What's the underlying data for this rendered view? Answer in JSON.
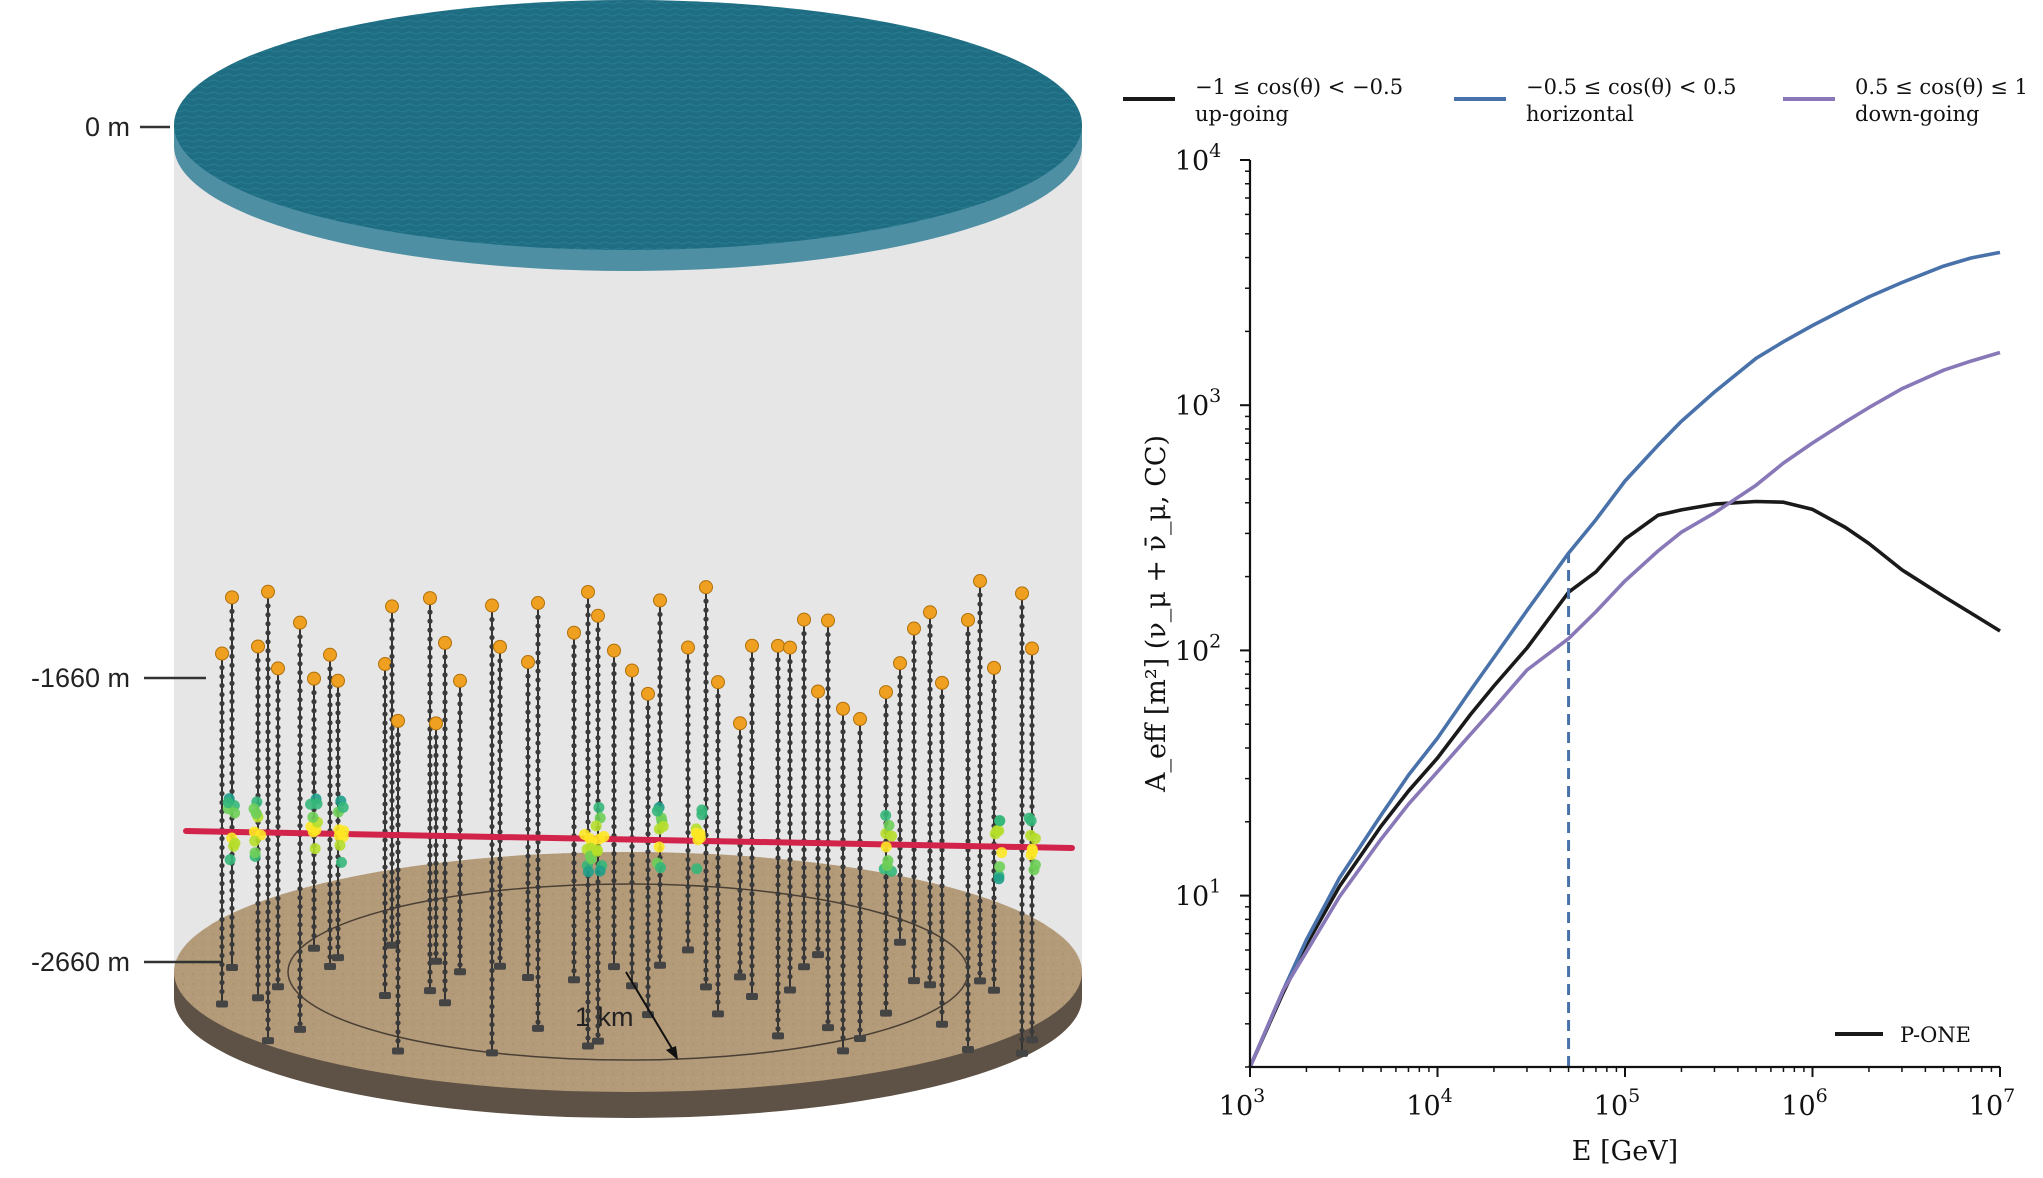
{
  "detector": {
    "depth_labels": [
      "0 m",
      "-1660 m",
      "-2660 m"
    ],
    "scale_label": "1 km",
    "colors": {
      "water": "#1e6d82",
      "water_edge": "#4f8fa3",
      "cylinder_wall": "#e6e6e6",
      "seafloor": "#b39a78",
      "seafloor_edge": "#5e5145",
      "module_top": "#f0a020",
      "string_line": "#333333",
      "muon_track": "#d2244a"
    }
  },
  "chart_data": {
    "type": "line",
    "xscale": "log",
    "yscale": "log",
    "xlim": [
      1000,
      10000000
    ],
    "ylim": [
      2,
      10000
    ],
    "xlabel": "E [GeV]",
    "ylabel": "A_eff [m²] (ν_μ + ν̄_μ, CC)",
    "x_ticks": [
      {
        "base": "10",
        "exp": "3"
      },
      {
        "base": "10",
        "exp": "4"
      },
      {
        "base": "10",
        "exp": "5"
      },
      {
        "base": "10",
        "exp": "6"
      },
      {
        "base": "10",
        "exp": "7"
      }
    ],
    "y_ticks": [
      {
        "base": "10",
        "exp": "1"
      },
      {
        "base": "10",
        "exp": "2"
      },
      {
        "base": "10",
        "exp": "3"
      },
      {
        "base": "10",
        "exp": "4"
      }
    ],
    "series": [
      {
        "name": "−1 ≤ cos(θ) < −0.5",
        "name_line2": "up-going",
        "color": "#1a1a1a",
        "x": [
          1000,
          1500,
          2000,
          3000,
          5000,
          7000,
          10000,
          15000,
          20000,
          30000,
          50000,
          70000,
          100000,
          150000,
          200000,
          300000,
          500000,
          700000,
          1000000,
          1500000,
          2000000,
          3000000,
          5000000,
          7000000,
          10000000
        ],
        "y": [
          2,
          4,
          6.3,
          10.9,
          19.2,
          26.7,
          36.4,
          54.8,
          71.6,
          102.3,
          172.7,
          209.3,
          284.5,
          355.7,
          374.2,
          394.9,
          405,
          402,
          376,
          317,
          273,
          213,
          166,
          142,
          120
        ]
      },
      {
        "name": "−0.5 ≤ cos(θ) < 0.5",
        "name_line2": "horizontal",
        "color": "#4a72aa",
        "x": [
          1000,
          1500,
          2000,
          3000,
          5000,
          7000,
          10000,
          15000,
          20000,
          30000,
          50000,
          70000,
          100000,
          150000,
          200000,
          300000,
          500000,
          700000,
          1000000,
          1500000,
          2000000,
          3000000,
          5000000,
          7000000,
          10000000
        ],
        "y": [
          2,
          4.1,
          6.6,
          11.8,
          21.3,
          31,
          43.9,
          68.7,
          93.6,
          145.4,
          249.3,
          341.5,
          491,
          686,
          860,
          1132,
          1553,
          1816,
          2114,
          2480,
          2766,
          3166,
          3694,
          3985,
          4200
        ]
      },
      {
        "name": "0.5 ≤ cos(θ) ≤ 1",
        "name_line2": "down-going",
        "color": "#8878b8",
        "x": [
          1000,
          1500,
          2000,
          3000,
          5000,
          7000,
          10000,
          15000,
          20000,
          30000,
          50000,
          70000,
          100000,
          150000,
          200000,
          300000,
          500000,
          700000,
          1000000,
          1500000,
          2000000,
          3000000,
          5000000,
          7000000,
          10000000
        ],
        "y": [
          2,
          4.1,
          5.9,
          9.9,
          17,
          23.6,
          32,
          45.5,
          58.1,
          83.2,
          111.7,
          143.9,
          192.1,
          254.4,
          303.5,
          363.6,
          472,
          581,
          701,
          855,
          978,
          1168,
          1389,
          1513,
          1640
        ]
      }
    ],
    "vline": {
      "x": 50000,
      "color": "#4a72aa",
      "style": "dashed"
    },
    "legend_box_label": "P-ONE",
    "legend_placement": "top (outside plot, horizontal)",
    "grid": false
  }
}
